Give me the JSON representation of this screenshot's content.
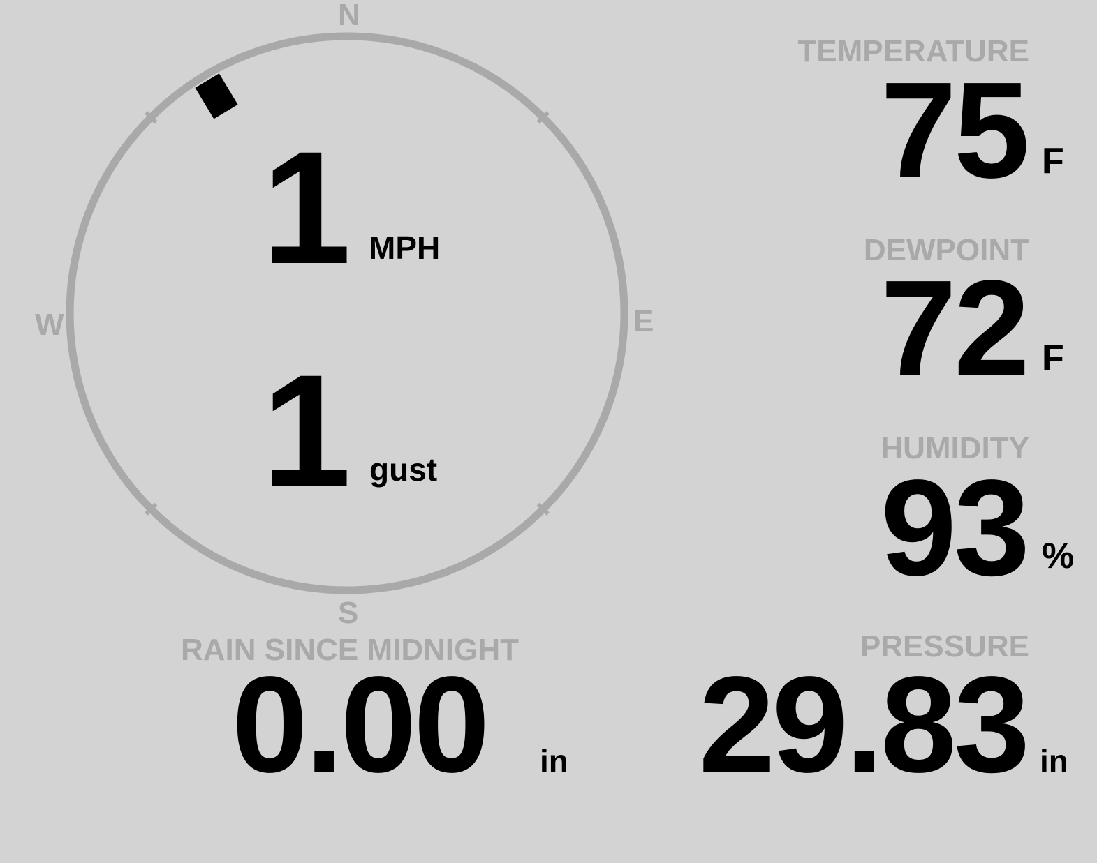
{
  "wind": {
    "compass": {
      "north": "N",
      "east": "E",
      "south": "S",
      "west": "W"
    },
    "direction_degrees": 329,
    "speed": "1",
    "speed_unit": "MPH",
    "gust": "1",
    "gust_unit": "gust"
  },
  "temperature": {
    "label": "TEMPERATURE",
    "value": "75",
    "unit": "F"
  },
  "dewpoint": {
    "label": "DEWPOINT",
    "value": "72",
    "unit": "F"
  },
  "humidity": {
    "label": "HUMIDITY",
    "value": "93",
    "unit": "%"
  },
  "rain": {
    "label": "RAIN SINCE MIDNIGHT",
    "value": "0.00",
    "unit": "in"
  },
  "pressure": {
    "label": "PRESSURE",
    "value": "29.83",
    "unit": "in"
  },
  "colors": {
    "background": "#d3d3d3",
    "label": "#a9a9a9",
    "value": "#000000"
  }
}
